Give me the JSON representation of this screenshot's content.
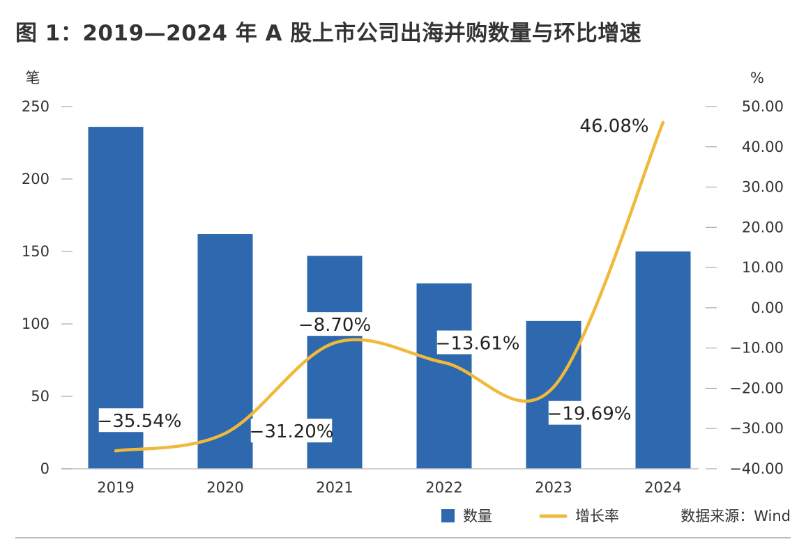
{
  "title": "图 1：2019—2024 年 A 股上市公司出海并购数量与环比增速",
  "source": "数据来源：Wind",
  "colors": {
    "bar": "#2e68ae",
    "line": "#f0b93a"
  },
  "chart_data": {
    "type": "bar+line",
    "categories": [
      "2019",
      "2020",
      "2021",
      "2022",
      "2023",
      "2024"
    ],
    "left_axis": {
      "unit": "笔",
      "ylim": [
        0,
        250
      ],
      "ticks": [
        "0",
        "50",
        "100",
        "150",
        "200",
        "250"
      ],
      "tick_values": [
        0,
        50,
        100,
        150,
        200,
        250
      ]
    },
    "right_axis": {
      "unit": "%",
      "ylim": [
        -40,
        50
      ],
      "ticks": [
        "−40.00",
        "−30.00",
        "−20.00",
        "−10.00",
        "0.00",
        "10.00",
        "20.00",
        "30.00",
        "40.00",
        "50.00"
      ],
      "tick_values": [
        -40,
        -30,
        -20,
        -10,
        0,
        10,
        20,
        30,
        40,
        50
      ]
    },
    "series": [
      {
        "name": "数量",
        "type": "bar",
        "axis": "left",
        "values": [
          236,
          162,
          147,
          128,
          102,
          150
        ]
      },
      {
        "name": "增长率",
        "type": "line",
        "axis": "right",
        "values": [
          -35.54,
          -31.2,
          -8.7,
          -13.61,
          -19.69,
          46.08
        ],
        "labels": [
          "−35.54%",
          "−31.20%",
          "−8.70%",
          "−13.61%",
          "−19.69%",
          "46.08%"
        ]
      }
    ],
    "legend_position": "bottom-right",
    "grid": false
  }
}
